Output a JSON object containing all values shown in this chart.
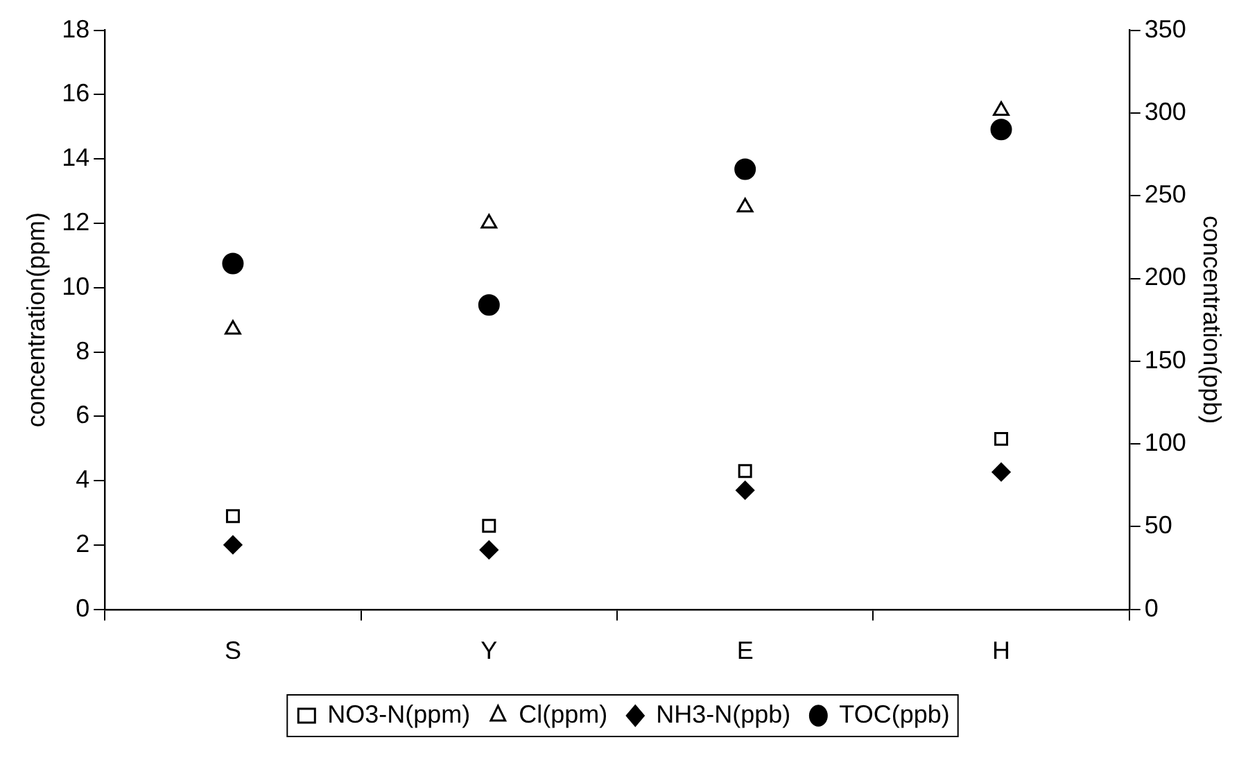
{
  "chart_data": {
    "type": "scatter",
    "ylabel": "concentration(ppm)",
    "y2label": "concentration(ppb)",
    "categories": [
      "S",
      "Y",
      "E",
      "H"
    ],
    "series": [
      {
        "name": "NO3-N(ppm)",
        "color": "#000000",
        "marker": "square",
        "values": [
          2.9,
          2.6,
          4.3,
          5.3
        ]
      },
      {
        "name": "Cl(ppm)",
        "color": "#000000",
        "marker": "triangle",
        "values": [
          8.7,
          12.0,
          12.5,
          15.5
        ]
      },
      {
        "name": "NH3-N(ppb)",
        "color": "#000000",
        "marker": "diamond",
        "axis": "y2",
        "values": [
          39,
          36,
          72,
          83
        ]
      },
      {
        "name": "TOC(ppb)",
        "color": "#000000",
        "marker": "circle",
        "axis": "y2",
        "values": [
          209,
          184,
          266,
          290
        ]
      }
    ],
    "ylim": [
      0,
      18
    ],
    "yticks": [
      0,
      2,
      4,
      6,
      8,
      10,
      12,
      14,
      16,
      18
    ],
    "y2lim": [
      0,
      350
    ],
    "y2ticks": [
      0,
      50,
      100,
      150,
      200,
      250,
      300,
      350
    ],
    "grid": false,
    "legend": "bottom"
  }
}
